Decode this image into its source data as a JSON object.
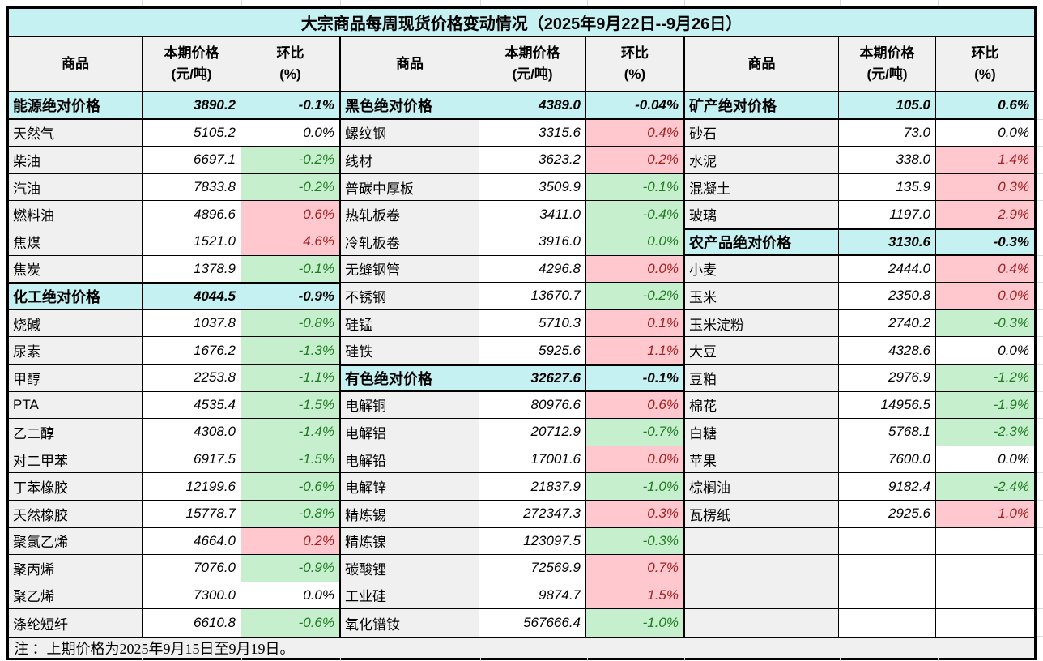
{
  "title": "大宗商品每周现货价格变动情况（2025年9月22日--9月26日）",
  "note": "注 ：上期价格为2025年9月15日至9月19日。",
  "header": {
    "product": "商品",
    "price_line1": "本期价格",
    "price_line2": "(元/吨)",
    "pct_line1": "环比",
    "pct_line2": "(%)"
  },
  "colors": {
    "title_bg": "#C5F1F3",
    "section_bg": "#C5F1F3",
    "name_bg": "#F0F0F0",
    "up_bg": "#FFC7CE",
    "up_text": "#A32020",
    "down_bg": "#C6EFCE",
    "down_text": "#227A22",
    "border": "#000000"
  },
  "legend": {
    "sec": "section summary row (cyan)",
    "up": "increase (pink bg, red text)",
    "dn": "decrease (green bg, green text)",
    "flat": "unchanged (white bg)",
    "empty": "empty cell row"
  },
  "groups": [
    {
      "rows": [
        [
          "能源绝对价格",
          "3890.2",
          "-0.1%",
          "sec"
        ],
        [
          "天然气",
          "5105.2",
          "0.0%",
          "flat"
        ],
        [
          "柴油",
          "6697.1",
          "-0.2%",
          "dn"
        ],
        [
          "汽油",
          "7833.8",
          "-0.2%",
          "dn"
        ],
        [
          "燃料油",
          "4896.6",
          "0.6%",
          "up"
        ],
        [
          "焦煤",
          "1521.0",
          "4.6%",
          "up"
        ],
        [
          "焦炭",
          "1378.9",
          "-0.1%",
          "dn"
        ],
        [
          "化工绝对价格",
          "4044.5",
          "-0.9%",
          "sec"
        ],
        [
          "烧碱",
          "1037.8",
          "-0.8%",
          "dn"
        ],
        [
          "尿素",
          "1676.2",
          "-1.3%",
          "dn"
        ],
        [
          "甲醇",
          "2253.8",
          "-1.1%",
          "dn"
        ],
        [
          "PTA",
          "4535.4",
          "-1.5%",
          "dn"
        ],
        [
          "乙二醇",
          "4308.0",
          "-1.4%",
          "dn"
        ],
        [
          "对二甲苯",
          "6917.5",
          "-1.5%",
          "dn"
        ],
        [
          "丁苯橡胶",
          "12199.6",
          "-0.6%",
          "dn"
        ],
        [
          "天然橡胶",
          "15778.7",
          "-0.8%",
          "dn"
        ],
        [
          "聚氯乙烯",
          "4664.0",
          "0.2%",
          "up"
        ],
        [
          "聚丙烯",
          "7076.0",
          "-0.9%",
          "dn"
        ],
        [
          "聚乙烯",
          "7300.0",
          "0.0%",
          "flat"
        ],
        [
          "涤纶短纤",
          "6610.8",
          "-0.6%",
          "dn"
        ]
      ]
    },
    {
      "rows": [
        [
          "黑色绝对价格",
          "4389.0",
          "-0.04%",
          "sec"
        ],
        [
          "螺纹钢",
          "3315.6",
          "0.4%",
          "up"
        ],
        [
          "线材",
          "3623.2",
          "0.2%",
          "up"
        ],
        [
          "普碳中厚板",
          "3509.9",
          "-0.1%",
          "dn"
        ],
        [
          "热轧板卷",
          "3411.0",
          "-0.4%",
          "dn"
        ],
        [
          "冷轧板卷",
          "3916.0",
          "0.0%",
          "dn"
        ],
        [
          "无缝钢管",
          "4296.8",
          "0.0%",
          "up"
        ],
        [
          "不锈钢",
          "13670.7",
          "-0.2%",
          "dn"
        ],
        [
          "硅锰",
          "5710.3",
          "0.1%",
          "up"
        ],
        [
          "硅铁",
          "5925.6",
          "1.1%",
          "up"
        ],
        [
          "有色绝对价格",
          "32627.6",
          "-0.1%",
          "sec"
        ],
        [
          "电解铜",
          "80976.6",
          "0.6%",
          "up"
        ],
        [
          "电解铝",
          "20712.9",
          "-0.7%",
          "dn"
        ],
        [
          "电解铅",
          "17001.6",
          "0.0%",
          "up"
        ],
        [
          "电解锌",
          "21837.9",
          "-1.0%",
          "dn"
        ],
        [
          "精炼锡",
          "272347.3",
          "0.3%",
          "up"
        ],
        [
          "精炼镍",
          "123097.5",
          "-0.3%",
          "dn"
        ],
        [
          "碳酸锂",
          "72569.9",
          "0.7%",
          "up"
        ],
        [
          "工业硅",
          "9874.7",
          "1.5%",
          "up"
        ],
        [
          "氧化镨钕",
          "567666.4",
          "-1.0%",
          "dn"
        ]
      ]
    },
    {
      "rows": [
        [
          "矿产绝对价格",
          "105.0",
          "0.6%",
          "sec"
        ],
        [
          "砂石",
          "73.0",
          "0.0%",
          "flat"
        ],
        [
          "水泥",
          "338.0",
          "1.4%",
          "up"
        ],
        [
          "混凝土",
          "135.9",
          "0.3%",
          "up"
        ],
        [
          "玻璃",
          "1197.0",
          "2.9%",
          "up"
        ],
        [
          "农产品绝对价格",
          "3130.6",
          "-0.3%",
          "sec"
        ],
        [
          "小麦",
          "2444.0",
          "0.4%",
          "up"
        ],
        [
          "玉米",
          "2350.8",
          "0.0%",
          "up"
        ],
        [
          "玉米淀粉",
          "2740.2",
          "-0.3%",
          "dn"
        ],
        [
          "大豆",
          "4328.6",
          "0.0%",
          "flat"
        ],
        [
          "豆粕",
          "2976.9",
          "-1.2%",
          "dn"
        ],
        [
          "棉花",
          "14956.5",
          "-1.9%",
          "dn"
        ],
        [
          "白糖",
          "5768.1",
          "-2.3%",
          "dn"
        ],
        [
          "苹果",
          "7600.0",
          "0.0%",
          "flat"
        ],
        [
          "棕榈油",
          "9182.4",
          "-2.4%",
          "dn"
        ],
        [
          "瓦楞纸",
          "2925.6",
          "1.0%",
          "up"
        ],
        [
          "",
          "",
          "",
          "empty"
        ],
        [
          "",
          "",
          "",
          "empty"
        ],
        [
          "",
          "",
          "",
          "empty"
        ],
        [
          "",
          "",
          "",
          "empty"
        ]
      ]
    }
  ]
}
